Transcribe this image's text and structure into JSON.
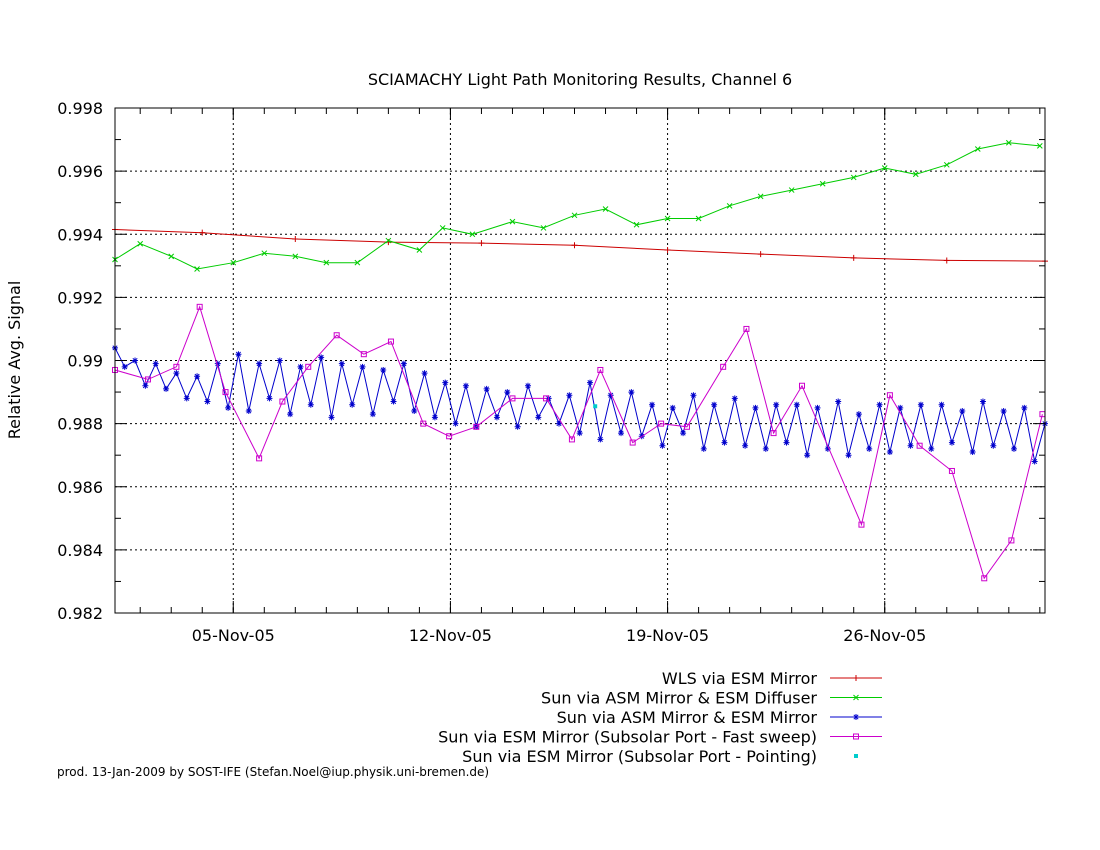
{
  "footer": "prod. 13-Jan-2009 by SOST-IFE (Stefan.Noel@iup.physik.uni-bremen.de)",
  "chart_data": {
    "type": "line",
    "title": "SCIAMACHY Light Path Monitoring Results, Channel 6",
    "xlabel": "",
    "ylabel": "Relative Avg. Signal",
    "xlim": [
      "2005-11-01T04:30",
      "2005-12-01T04:00"
    ],
    "ylim": [
      0.982,
      0.998
    ],
    "x_ticks": [
      {
        "date": "2005-11-05",
        "label": "05-Nov-05"
      },
      {
        "date": "2005-11-12",
        "label": "12-Nov-05"
      },
      {
        "date": "2005-11-19",
        "label": "19-Nov-05"
      },
      {
        "date": "2005-11-26",
        "label": "26-Nov-05"
      }
    ],
    "y_ticks": [
      "0.982",
      "0.984",
      "0.986",
      "0.988",
      "0.99",
      "0.992",
      "0.994",
      "0.996",
      "0.998"
    ],
    "y_tick_values": [
      0.982,
      0.984,
      0.986,
      0.988,
      0.99,
      0.992,
      0.994,
      0.996,
      0.998
    ],
    "grid": true,
    "legend_position": "bottom-right",
    "series": [
      {
        "name": "WLS via ESM Mirror",
        "color": "#cc0000",
        "marker": "plus",
        "x": [
          "2005-11-01T04:30",
          "2005-11-04T00:00",
          "2005-11-07T00:00",
          "2005-11-10T00:00",
          "2005-11-13T00:00",
          "2005-11-16T00:00",
          "2005-11-19T00:00",
          "2005-11-22T00:00",
          "2005-11-25T00:00",
          "2005-11-28T00:00",
          "2005-12-01T04:00"
        ],
        "y": [
          0.99415,
          0.99405,
          0.99385,
          0.99375,
          0.99372,
          0.99365,
          0.9935,
          0.99337,
          0.99325,
          0.99317,
          0.99315
        ]
      },
      {
        "name": "Sun via ASM Mirror & ESM Diffuser",
        "color": "#00cc00",
        "marker": "x",
        "x": [
          "2005-11-01T04:30",
          "2005-11-02T00:00",
          "2005-11-03T00:00",
          "2005-11-03T20:00",
          "2005-11-05T00:00",
          "2005-11-06T00:00",
          "2005-11-07T00:00",
          "2005-11-08T00:00",
          "2005-11-09T00:00",
          "2005-11-10T00:00",
          "2005-11-11T00:00",
          "2005-11-11T18:00",
          "2005-11-12T17:00",
          "2005-11-14T00:00",
          "2005-11-15T00:00",
          "2005-11-16T00:00",
          "2005-11-17T00:00",
          "2005-11-18T00:00",
          "2005-11-19T00:00",
          "2005-11-20T00:00",
          "2005-11-21T00:00",
          "2005-11-22T00:00",
          "2005-11-23T00:00",
          "2005-11-24T00:00",
          "2005-11-25T00:00",
          "2005-11-26T00:00",
          "2005-11-27T00:00",
          "2005-11-28T00:00",
          "2005-11-29T00:00",
          "2005-11-30T00:00",
          "2005-12-01T00:00"
        ],
        "y": [
          0.9932,
          0.9937,
          0.9933,
          0.9929,
          0.9931,
          0.9934,
          0.9933,
          0.9931,
          0.9931,
          0.9938,
          0.9935,
          0.9942,
          0.994,
          0.9944,
          0.9942,
          0.9946,
          0.9948,
          0.9943,
          0.9945,
          0.9945,
          0.9949,
          0.9952,
          0.9954,
          0.9956,
          0.9958,
          0.9961,
          0.9959,
          0.9962,
          0.9967,
          0.9969,
          0.9968
        ]
      },
      {
        "name": "Sun via ASM Mirror & ESM Mirror",
        "color": "#0000cc",
        "marker": "star",
        "x": [
          "2005-11-01T04:30",
          "2005-11-01T12:00",
          "2005-11-01T20:00",
          "2005-11-02T04:00",
          "2005-11-02T12:00",
          "2005-11-02T20:00",
          "2005-11-03T04:00",
          "2005-11-03T12:00",
          "2005-11-03T20:00",
          "2005-11-04T04:00",
          "2005-11-04T12:00",
          "2005-11-04T20:00",
          "2005-11-05T04:00",
          "2005-11-05T12:00",
          "2005-11-05T20:00",
          "2005-11-06T04:00",
          "2005-11-06T12:00",
          "2005-11-06T20:00",
          "2005-11-07T04:00",
          "2005-11-07T12:00",
          "2005-11-07T20:00",
          "2005-11-08T04:00",
          "2005-11-08T12:00",
          "2005-11-08T20:00",
          "2005-11-09T04:00",
          "2005-11-09T12:00",
          "2005-11-09T20:00",
          "2005-11-10T04:00",
          "2005-11-10T12:00",
          "2005-11-10T20:00",
          "2005-11-11T04:00",
          "2005-11-11T12:00",
          "2005-11-11T20:00",
          "2005-11-12T04:00",
          "2005-11-12T12:00",
          "2005-11-12T20:00",
          "2005-11-13T04:00",
          "2005-11-13T12:00",
          "2005-11-13T20:00",
          "2005-11-14T04:00",
          "2005-11-14T12:00",
          "2005-11-14T20:00",
          "2005-11-15T04:00",
          "2005-11-15T12:00",
          "2005-11-15T20:00",
          "2005-11-16T04:00",
          "2005-11-16T12:00",
          "2005-11-16T20:00",
          "2005-11-17T04:00",
          "2005-11-17T12:00",
          "2005-11-17T20:00",
          "2005-11-18T04:00",
          "2005-11-18T12:00",
          "2005-11-18T20:00",
          "2005-11-19T04:00",
          "2005-11-19T12:00",
          "2005-11-19T20:00",
          "2005-11-20T04:00",
          "2005-11-20T12:00",
          "2005-11-20T20:00",
          "2005-11-21T04:00",
          "2005-11-21T12:00",
          "2005-11-21T20:00",
          "2005-11-22T04:00",
          "2005-11-22T12:00",
          "2005-11-22T20:00",
          "2005-11-23T04:00",
          "2005-11-23T12:00",
          "2005-11-23T20:00",
          "2005-11-24T04:00",
          "2005-11-24T12:00",
          "2005-11-24T20:00",
          "2005-11-25T04:00",
          "2005-11-25T12:00",
          "2005-11-25T20:00",
          "2005-11-26T04:00",
          "2005-11-26T12:00",
          "2005-11-26T20:00",
          "2005-11-27T04:00",
          "2005-11-27T12:00",
          "2005-11-27T20:00",
          "2005-11-28T04:00",
          "2005-11-28T12:00",
          "2005-11-28T20:00",
          "2005-11-29T04:00",
          "2005-11-29T12:00",
          "2005-11-29T20:00",
          "2005-11-30T04:00",
          "2005-11-30T12:00",
          "2005-11-30T20:00",
          "2005-12-01T04:00"
        ],
        "y": [
          0.9904,
          0.9898,
          0.99,
          0.9892,
          0.9899,
          0.9891,
          0.9896,
          0.9888,
          0.9895,
          0.9887,
          0.9899,
          0.9885,
          0.9902,
          0.9884,
          0.9899,
          0.9888,
          0.99,
          0.9883,
          0.9898,
          0.9886,
          0.9901,
          0.9882,
          0.9899,
          0.9886,
          0.9898,
          0.9883,
          0.9897,
          0.9887,
          0.9899,
          0.9884,
          0.9896,
          0.9882,
          0.9893,
          0.988,
          0.9892,
          0.9879,
          0.9891,
          0.9882,
          0.989,
          0.9879,
          0.9892,
          0.9882,
          0.9888,
          0.988,
          0.9889,
          0.9877,
          0.9893,
          0.9875,
          0.9889,
          0.9877,
          0.989,
          0.9876,
          0.9886,
          0.9873,
          0.9885,
          0.9877,
          0.9889,
          0.9872,
          0.9886,
          0.9874,
          0.9888,
          0.9873,
          0.9885,
          0.9872,
          0.9886,
          0.9874,
          0.9886,
          0.987,
          0.9885,
          0.9872,
          0.9887,
          0.987,
          0.9883,
          0.9872,
          0.9886,
          0.9871,
          0.9885,
          0.9873,
          0.9886,
          0.9872,
          0.9886,
          0.9874,
          0.9884,
          0.9871,
          0.9887,
          0.9873,
          0.9884,
          0.9872,
          0.9885,
          0.9868,
          0.988
        ]
      },
      {
        "name": "Sun via ESM Mirror (Subsolar Port - Fast sweep)",
        "color": "#cc00cc",
        "marker": "square",
        "x": [
          "2005-11-01T04:30",
          "2005-11-02T06:00",
          "2005-11-03T04:00",
          "2005-11-03T22:00",
          "2005-11-04T18:00",
          "2005-11-05T20:00",
          "2005-11-06T14:00",
          "2005-11-07T10:00",
          "2005-11-08T08:00",
          "2005-11-09T05:00",
          "2005-11-10T02:00",
          "2005-11-11T03:00",
          "2005-11-11T23:00",
          "2005-11-12T20:00",
          "2005-11-14T00:00",
          "2005-11-15T02:00",
          "2005-11-15T22:00",
          "2005-11-16T20:00",
          "2005-11-17T21:00",
          "2005-11-18T19:00",
          "2005-11-19T15:00",
          "2005-11-20T19:00",
          "2005-11-21T13:00",
          "2005-11-22T10:00",
          "2005-11-23T08:00",
          "2005-11-25T06:00",
          "2005-11-26T04:00",
          "2005-11-27T03:00",
          "2005-11-28T04:00",
          "2005-11-29T05:00",
          "2005-11-30T02:00",
          "2005-12-01T02:00"
        ],
        "y": [
          0.9897,
          0.9894,
          0.9898,
          0.9917,
          0.989,
          0.9869,
          0.9887,
          0.9898,
          0.9908,
          0.9902,
          0.9906,
          0.988,
          0.9876,
          0.9879,
          0.9888,
          0.9888,
          0.9875,
          0.9897,
          0.9874,
          0.988,
          0.9879,
          0.9898,
          0.991,
          0.9877,
          0.9892,
          0.9848,
          0.9889,
          0.9873,
          0.9865,
          0.9831,
          0.9843,
          0.9883
        ]
      },
      {
        "name": "Sun via ESM Mirror (Subsolar Port - Pointing)",
        "color": "#00cccc",
        "marker": "dot",
        "x": [
          "2005-11-16T16:00"
        ],
        "y": [
          0.98855
        ]
      }
    ]
  }
}
